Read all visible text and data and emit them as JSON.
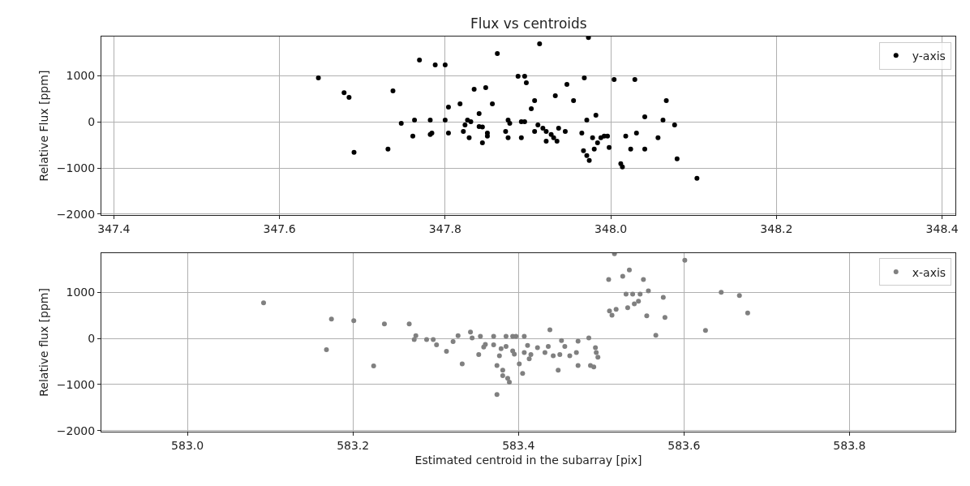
{
  "chart_data": [
    {
      "type": "scatter",
      "title": "Flux vs centroids",
      "ylabel": "Relative Flux [ppm]",
      "grid": true,
      "legend": "top right",
      "marker": "circle",
      "xlim": [
        347.385,
        348.416
      ],
      "ylim": [
        -2020,
        1850
      ],
      "xticks": [
        347.4,
        347.6,
        347.8,
        {
          "value": 348.0,
          "label": "348.0"
        },
        348.2,
        348.4
      ],
      "yticks": [
        -2000,
        -1000,
        0,
        1000
      ],
      "series": [
        {
          "name": "y-axis",
          "color": "#000000",
          "x": [
            347.647,
            347.678,
            347.684,
            347.737,
            347.747,
            347.69,
            347.731,
            347.769,
            347.788,
            347.8,
            347.763,
            347.761,
            347.782,
            347.782,
            347.784,
            347.8,
            347.804,
            347.804,
            347.818,
            347.822,
            347.824,
            347.827,
            347.831,
            347.829,
            347.835,
            347.841,
            347.841,
            347.845,
            347.845,
            347.849,
            347.851,
            347.851,
            347.857,
            347.863,
            347.873,
            347.876,
            347.878,
            347.876,
            347.888,
            347.896,
            347.898,
            347.892,
            347.896,
            347.892,
            347.904,
            347.908,
            347.908,
            347.912,
            347.914,
            347.918,
            347.922,
            347.922,
            347.928,
            347.931,
            347.933,
            347.935,
            347.937,
            347.945,
            347.947,
            347.955,
            347.965,
            347.967,
            347.968,
            347.971,
            347.971,
            347.974,
            347.973,
            347.978,
            347.98,
            347.982,
            347.984,
            347.988,
            347.992,
            347.996,
            347.998,
            348.004,
            348.012,
            348.014,
            348.018,
            348.024,
            348.029,
            348.031,
            348.041,
            348.041,
            348.057,
            348.063,
            348.067,
            348.077,
            348.08,
            348.104
          ],
          "values": [
            953,
            632,
            532,
            672,
            -30,
            -661,
            -591,
            1339,
            1234,
            1234,
            41,
            -310,
            41,
            -275,
            -240,
            41,
            321,
            -240,
            391,
            -205,
            -65,
            41,
            6,
            -345,
            707,
            181,
            -100,
            -112,
            -451,
            742,
            -240,
            -310,
            391,
            1479,
            -205,
            41,
            -30,
            -345,
            988,
            988,
            848,
            6,
            6,
            -345,
            286,
            462,
            -205,
            -65,
            1690,
            -135,
            -205,
            -416,
            -275,
            -345,
            567,
            -416,
            -135,
            -205,
            812,
            462,
            -240,
            -626,
            953,
            41,
            -731,
            -837,
            1830,
            -345,
            -591,
            146,
            -451,
            -345,
            -310,
            -310,
            -556,
            918,
            -907,
            -977,
            -310,
            -591,
            918,
            -240,
            111,
            -591,
            -345,
            41,
            462,
            -65,
            -802,
            -1223
          ]
        }
      ]
    },
    {
      "type": "scatter",
      "xlabel": "Estimated centroid in the subarray [pix]",
      "ylabel": "Relative flux [ppm]",
      "grid": true,
      "legend": "top right",
      "marker": "circle",
      "xlim": [
        582.896,
        583.928
      ],
      "ylim": [
        -2020,
        1850
      ],
      "xticks": [
        {
          "value": 583.0,
          "label": "583.0"
        },
        583.2,
        583.4,
        583.6,
        583.8
      ],
      "yticks": [
        -2000,
        -1000,
        0,
        1000
      ],
      "series": [
        {
          "name": "x-axis",
          "color": "#808080",
          "x": [
            583.092,
            583.174,
            583.201,
            583.238,
            583.168,
            583.225,
            583.268,
            583.276,
            583.274,
            583.289,
            583.297,
            583.301,
            583.313,
            583.321,
            583.327,
            583.332,
            583.342,
            583.344,
            583.354,
            583.352,
            583.358,
            583.36,
            583.37,
            583.37,
            583.374,
            583.374,
            583.377,
            583.379,
            583.381,
            583.381,
            583.385,
            583.385,
            583.387,
            583.389,
            583.393,
            583.393,
            583.395,
            583.397,
            583.401,
            583.405,
            583.407,
            583.407,
            583.411,
            583.413,
            583.415,
            583.423,
            583.432,
            583.436,
            583.438,
            583.442,
            583.448,
            583.45,
            583.452,
            583.456,
            583.462,
            583.47,
            583.472,
            583.472,
            583.485,
            583.487,
            583.491,
            583.493,
            583.494,
            583.496,
            583.509,
            583.51,
            583.513,
            583.518,
            583.516,
            583.526,
            583.53,
            583.532,
            583.534,
            583.538,
            583.54,
            583.545,
            583.547,
            583.551,
            583.555,
            583.557,
            583.566,
            583.575,
            583.577,
            583.601,
            583.626,
            583.645,
            583.667,
            583.677
          ],
          "values": [
            772,
            421,
            386,
            316,
            -246,
            -596,
            316,
            58,
            -23,
            -23,
            -23,
            -140,
            -281,
            -70,
            58,
            -550,
            140,
            12,
            47,
            -351,
            -187,
            -129,
            47,
            -140,
            -585,
            -1216,
            -374,
            -222,
            -690,
            -807,
            47,
            -175,
            -866,
            -947,
            47,
            -269,
            -339,
            47,
            -550,
            -760,
            47,
            -304,
            -152,
            -444,
            -351,
            -199,
            -304,
            -175,
            187,
            -374,
            -690,
            -351,
            -47,
            -175,
            -374,
            -304,
            -59,
            -585,
            12,
            -585,
            -620,
            -199,
            -304,
            -409,
            1275,
            597,
            503,
            632,
            1836,
            1345,
            959,
            667,
            1485,
            959,
            749,
            807,
            959,
            1275,
            491,
            1029,
            70,
            889,
            456,
            1696,
            175,
            1000,
            930,
            550
          ]
        }
      ]
    }
  ]
}
